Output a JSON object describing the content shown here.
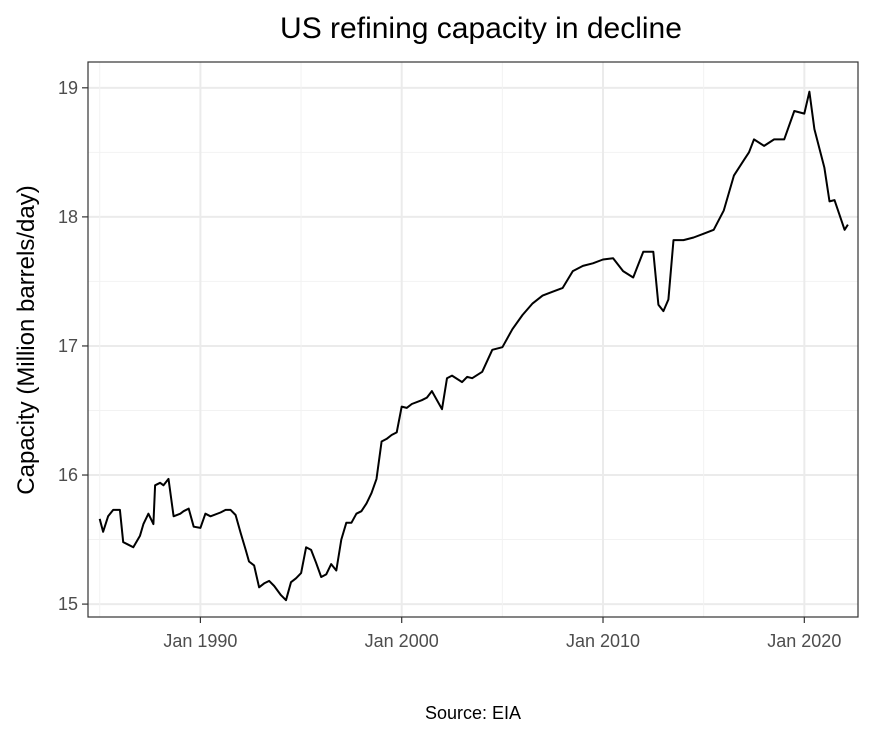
{
  "chart_data": {
    "type": "line",
    "title": "US refining capacity in decline",
    "xlabel": "",
    "ylabel": "Capacity (Million barrels/day)",
    "caption": "Source: EIA",
    "xlim": [
      "1984-06",
      "2022-09"
    ],
    "ylim": [
      14.9,
      19.2
    ],
    "x_ticks": [
      "Jan 1990",
      "Jan 2000",
      "Jan 2010",
      "Jan 2020"
    ],
    "y_ticks": [
      "15",
      "16",
      "17",
      "18",
      "19"
    ],
    "grid": true,
    "legend": "none",
    "line_color": "#000000",
    "series": [
      {
        "x": [
          "1985-01",
          "1985-03",
          "1985-06",
          "1985-09",
          "1986-01",
          "1986-03",
          "1986-06",
          "1986-09",
          "1987-01",
          "1987-03",
          "1987-06",
          "1987-09",
          "1987-10",
          "1988-01",
          "1988-03",
          "1988-06",
          "1988-09",
          "1989-01",
          "1989-03",
          "1989-06",
          "1989-09",
          "1990-01",
          "1990-04",
          "1990-07",
          "1991-01",
          "1991-04",
          "1991-07",
          "1991-10",
          "1992-01",
          "1992-04",
          "1992-06",
          "1992-09",
          "1992-12",
          "1993-03",
          "1993-06",
          "1993-09",
          "1994-01",
          "1994-04",
          "1994-07",
          "1994-10",
          "1995-01",
          "1995-04",
          "1995-07",
          "1995-10",
          "1996-01",
          "1996-04",
          "1996-07",
          "1996-10",
          "1997-01",
          "1997-04",
          "1997-07",
          "1997-10",
          "1998-01",
          "1998-04",
          "1998-07",
          "1998-10",
          "1999-01",
          "1999-04",
          "1999-07",
          "1999-10",
          "2000-01",
          "2000-04",
          "2000-07",
          "2001-01",
          "2001-04",
          "2001-07",
          "2002-01",
          "2002-04",
          "2002-07",
          "2003-01",
          "2003-04",
          "2003-07",
          "2004-01",
          "2004-07",
          "2005-01",
          "2005-07",
          "2006-01",
          "2006-07",
          "2007-01",
          "2007-07",
          "2008-01",
          "2008-07",
          "2009-01",
          "2009-07",
          "2010-01",
          "2010-07",
          "2011-01",
          "2011-07",
          "2012-01",
          "2012-04",
          "2012-07",
          "2012-10",
          "2013-01",
          "2013-04",
          "2013-07",
          "2014-01",
          "2014-07",
          "2015-01",
          "2015-07",
          "2016-01",
          "2016-07",
          "2017-01",
          "2017-04",
          "2017-07",
          "2018-01",
          "2018-07",
          "2019-01",
          "2019-07",
          "2020-01",
          "2020-04",
          "2020-07",
          "2021-01",
          "2021-04",
          "2021-07",
          "2022-01",
          "2022-03"
        ],
        "values": [
          15.66,
          15.56,
          15.68,
          15.73,
          15.73,
          15.48,
          15.46,
          15.44,
          15.53,
          15.62,
          15.7,
          15.62,
          15.92,
          15.94,
          15.92,
          15.97,
          15.68,
          15.7,
          15.72,
          15.74,
          15.6,
          15.59,
          15.7,
          15.68,
          15.71,
          15.73,
          15.73,
          15.69,
          15.55,
          15.42,
          15.33,
          15.3,
          15.13,
          15.16,
          15.18,
          15.14,
          15.07,
          15.03,
          15.17,
          15.2,
          15.24,
          15.44,
          15.42,
          15.32,
          15.21,
          15.23,
          15.31,
          15.26,
          15.5,
          15.63,
          15.63,
          15.7,
          15.72,
          15.78,
          15.86,
          15.97,
          16.26,
          16.28,
          16.31,
          16.33,
          16.53,
          16.52,
          16.55,
          16.58,
          16.6,
          16.65,
          16.51,
          16.75,
          16.77,
          16.72,
          16.76,
          16.75,
          16.8,
          16.97,
          16.99,
          17.13,
          17.24,
          17.33,
          17.39,
          17.42,
          17.45,
          17.58,
          17.62,
          17.64,
          17.67,
          17.68,
          17.58,
          17.53,
          17.73,
          17.73,
          17.73,
          17.32,
          17.27,
          17.36,
          17.82,
          17.82,
          17.84,
          17.87,
          17.9,
          18.05,
          18.32,
          18.44,
          18.5,
          18.6,
          18.55,
          18.6,
          18.6,
          18.82,
          18.8,
          18.97,
          18.68,
          18.38,
          18.12,
          18.13,
          17.9,
          17.94
        ]
      }
    ]
  }
}
